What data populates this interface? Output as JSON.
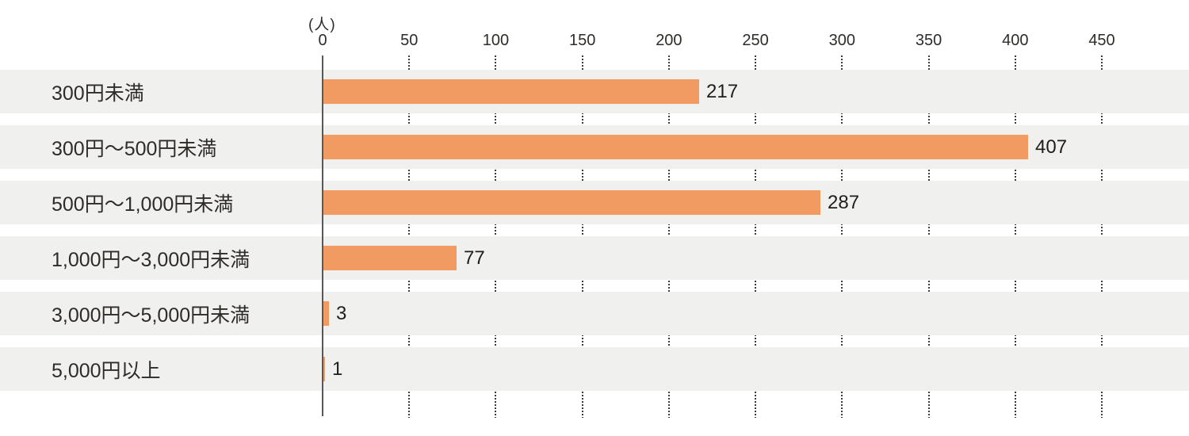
{
  "chart_data": {
    "type": "bar",
    "orientation": "horizontal",
    "title": "",
    "unit_label": "(人)",
    "categories": [
      "300円未満",
      "300円〜500円未満",
      "500円〜1,000円未満",
      "1,000円〜3,000円未満",
      "3,000円〜5,000円未満",
      "5,000円以上"
    ],
    "values": [
      217,
      407,
      287,
      77,
      3,
      1
    ],
    "value_labels": [
      "217",
      "407",
      "287",
      "77",
      "3",
      "1"
    ],
    "xlabel": "",
    "ylabel": "",
    "xlim": [
      0,
      450
    ],
    "tick_interval": 50,
    "ticks": [
      0,
      50,
      100,
      150,
      200,
      250,
      300,
      350,
      400,
      450
    ],
    "grid": "vertical-dotted-between-rows",
    "legend": "none",
    "colors": {
      "bar": "#f19a62",
      "row_background": "#f0f0ef",
      "axis_line": "#58585a",
      "grid_dots": "#3c3c3c",
      "text": "#2f2b28"
    }
  }
}
